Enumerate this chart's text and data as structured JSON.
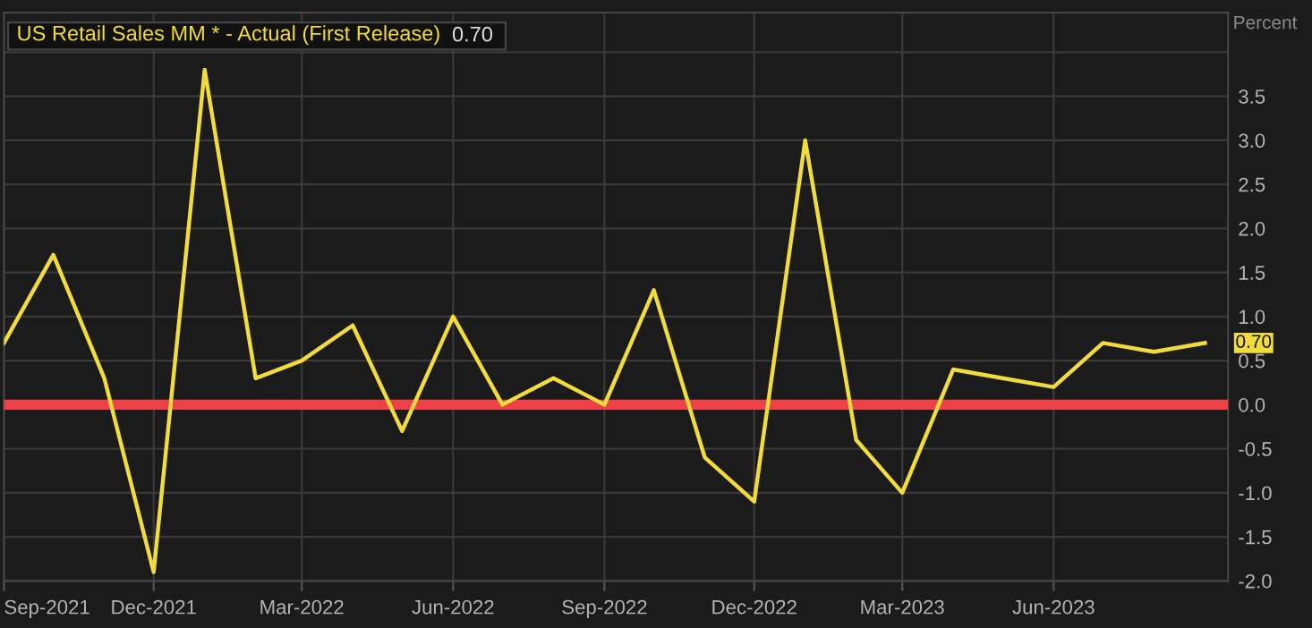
{
  "chart_data": {
    "type": "line",
    "ylabel": "Percent",
    "x": [
      "2021-09",
      "2021-10",
      "2021-11",
      "2021-12",
      "2022-01",
      "2022-02",
      "2022-03",
      "2022-04",
      "2022-05",
      "2022-06",
      "2022-07",
      "2022-08",
      "2022-09",
      "2022-10",
      "2022-11",
      "2022-12",
      "2023-01",
      "2023-02",
      "2023-03",
      "2023-04",
      "2023-05",
      "2023-06",
      "2023-07",
      "2023-08",
      "2023-09"
    ],
    "series": [
      {
        "name": "US Retail Sales MM * - Actual (First Release)",
        "color": "#f2dc3c",
        "values": [
          0.7,
          1.7,
          0.3,
          -1.9,
          3.8,
          0.3,
          0.5,
          0.9,
          -0.3,
          1.0,
          0.0,
          0.3,
          0.0,
          1.3,
          -0.6,
          -1.1,
          3.0,
          -0.4,
          -1.0,
          0.4,
          0.3,
          0.2,
          0.7,
          0.6,
          0.7
        ],
        "value_labels": [
          null,
          null,
          null,
          null,
          null,
          null,
          null,
          null,
          null,
          null,
          null,
          null,
          null,
          null,
          null,
          null,
          null,
          null,
          null,
          null,
          null,
          null,
          null,
          null,
          "0.70"
        ]
      }
    ],
    "annotations": [
      "0.70"
    ],
    "xlim": [
      "2021-09-01",
      "2023-09-15"
    ],
    "xticks": [
      {
        "value": "2021-09-01",
        "label": "Sep-2021"
      },
      {
        "value": "2021-12-01",
        "label": "Dec-2021"
      },
      {
        "value": "2022-03-01",
        "label": "Mar-2022"
      },
      {
        "value": "2022-06-01",
        "label": "Jun-2022"
      },
      {
        "value": "2022-09-01",
        "label": "Sep-2022"
      },
      {
        "value": "2022-12-01",
        "label": "Dec-2022"
      },
      {
        "value": "2023-03-01",
        "label": "Mar-2023"
      },
      {
        "value": "2023-06-01",
        "label": "Jun-2023"
      }
    ],
    "ylim": [
      -2.0,
      4.45
    ],
    "yticks": [
      {
        "value": -2.0,
        "label": "-2.0"
      },
      {
        "value": -1.5,
        "label": "-1.5"
      },
      {
        "value": -1.0,
        "label": "-1.0"
      },
      {
        "value": -0.5,
        "label": "-0.5"
      },
      {
        "value": 0.0,
        "label": "0.0"
      },
      {
        "value": 0.5,
        "label": "0.5"
      },
      {
        "value": 1.0,
        "label": "1.0"
      },
      {
        "value": 1.5,
        "label": "1.5"
      },
      {
        "value": 2.0,
        "label": "2.0"
      },
      {
        "value": 2.5,
        "label": "2.5"
      },
      {
        "value": 3.0,
        "label": "3.0"
      },
      {
        "value": 3.5,
        "label": "3.5"
      },
      {
        "value": 4.0,
        "label": null
      }
    ],
    "ref_lines": [
      {
        "axis": "y",
        "value": 0.0,
        "color": "#ee4147"
      }
    ],
    "grid": true,
    "legend": "top left",
    "marker": "none",
    "line_style": "solid"
  }
}
